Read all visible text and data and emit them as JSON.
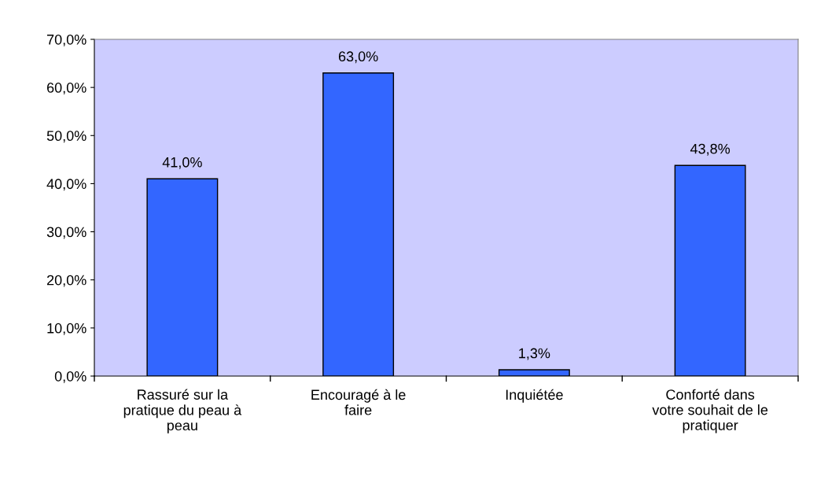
{
  "chart_data": {
    "type": "bar",
    "categories": [
      "Rassuré sur la\npratique du peau à\npeau",
      "Encouragé à le\nfaire",
      "Inquiétée",
      "Conforté dans\nvotre souhait de le\npratiquer"
    ],
    "values": [
      41.0,
      63.0,
      1.3,
      43.8
    ],
    "color": "#3366ff",
    "value_labels": [
      "41,0%",
      "63,0%",
      "1,3%",
      "43,8%"
    ],
    "ylim": [
      0,
      70
    ],
    "yticks": [
      {
        "value": 0,
        "label": "0,0%"
      },
      {
        "value": 10,
        "label": "10,0%"
      },
      {
        "value": 20,
        "label": "20,0%"
      },
      {
        "value": 30,
        "label": "30,0%"
      },
      {
        "value": 40,
        "label": "40,0%"
      },
      {
        "value": 50,
        "label": "50,0%"
      },
      {
        "value": 60,
        "label": "60,0%"
      },
      {
        "value": 70,
        "label": "70,0%"
      }
    ],
    "grid": false,
    "legend": false
  }
}
